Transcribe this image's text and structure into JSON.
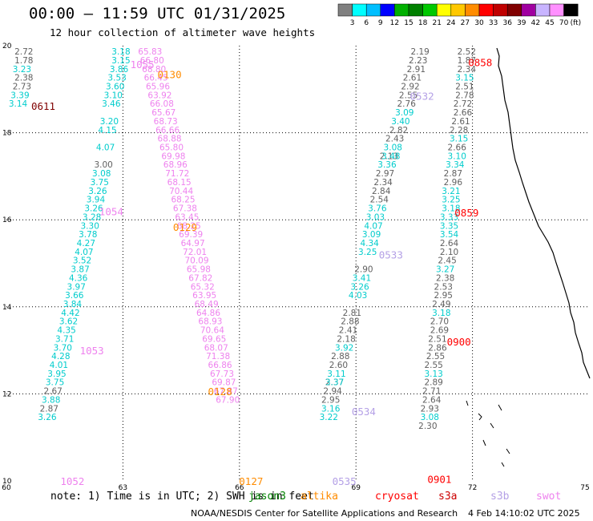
{
  "title": "00:00 – 11:59 UTC 01/31/2025",
  "subtitle": "12 hour collection of altimeter wave heights",
  "note": "note: 1) Time is in UTC; 2) SWH is in feet",
  "credit": "NOAA/NESDIS Center for Satellite Applications and Research",
  "stamp": "4 Feb 14:10:02 UTC 2025",
  "satellite_legend": [
    {
      "name": "jason3",
      "color": "#008000"
    },
    {
      "name": "altika",
      "color": "#ff8c00"
    },
    {
      "name": "cryosat",
      "color": "#ff0000"
    },
    {
      "name": "s3a",
      "color": "#cc0000"
    },
    {
      "name": "s3b",
      "color": "#b4a0e6"
    },
    {
      "name": "swot",
      "color": "#ee82ee"
    }
  ],
  "color_scale": {
    "unit": "(ft)",
    "ticks": [
      "3",
      "6",
      "9",
      "12",
      "15",
      "18",
      "21",
      "24",
      "27",
      "30",
      "33",
      "36",
      "39",
      "42",
      "45",
      "70"
    ],
    "colors": [
      "#808080",
      "#00ffff",
      "#00bfff",
      "#0000ff",
      "#00b000",
      "#008000",
      "#00c800",
      "#ffff00",
      "#ffc800",
      "#ff8c00",
      "#ff0000",
      "#c00000",
      "#800000",
      "#a000a0",
      "#c8b4ff",
      "#ff90ff",
      "#000000"
    ]
  },
  "chart_data": {
    "type": "scatter",
    "x_ticks": [
      "60",
      "63",
      "66",
      "69",
      "72",
      "75"
    ],
    "y_ticks": [
      "10",
      "12",
      "14",
      "16",
      "18",
      "20"
    ],
    "xlim": [
      60,
      75
    ],
    "ylim": [
      10,
      20
    ],
    "grid": true,
    "track_labels": [
      {
        "text": "0611",
        "lon": 60.95,
        "lat": 18.62,
        "color": "#800000"
      },
      {
        "text": "1055",
        "lon": 63.5,
        "lat": 19.58,
        "color": "#ee82ee"
      },
      {
        "text": "0130",
        "lon": 64.2,
        "lat": 19.35,
        "color": "#ff8c00"
      },
      {
        "text": "1054",
        "lon": 62.7,
        "lat": 16.2,
        "color": "#ee82ee"
      },
      {
        "text": "0129",
        "lon": 64.6,
        "lat": 15.84,
        "color": "#ff8c00"
      },
      {
        "text": "1053",
        "lon": 62.2,
        "lat": 13.0,
        "color": "#ee82ee"
      },
      {
        "text": "0128",
        "lon": 65.5,
        "lat": 12.06,
        "color": "#ff8c00"
      },
      {
        "text": "1052",
        "lon": 61.7,
        "lat": 10.0,
        "color": "#ee82ee"
      },
      {
        "text": "0127",
        "lon": 66.3,
        "lat": 10.0,
        "color": "#ff8c00"
      },
      {
        "text": "0532",
        "lon": 70.7,
        "lat": 18.85,
        "color": "#b4a0e6"
      },
      {
        "text": "0533",
        "lon": 69.9,
        "lat": 15.2,
        "color": "#b4a0e6"
      },
      {
        "text": "0534",
        "lon": 69.2,
        "lat": 11.6,
        "color": "#b4a0e6"
      },
      {
        "text": "0535",
        "lon": 68.7,
        "lat": 10.0,
        "color": "#b4a0e6"
      },
      {
        "text": "0858",
        "lon": 72.2,
        "lat": 19.62,
        "color": "#ff0000"
      },
      {
        "text": "0859",
        "lon": 71.85,
        "lat": 16.17,
        "color": "#ff0000"
      },
      {
        "text": "0900",
        "lon": 71.65,
        "lat": 13.2,
        "color": "#ff0000"
      },
      {
        "text": "0901",
        "lon": 71.15,
        "lat": 10.05,
        "color": "#ff0000"
      }
    ],
    "series": [
      {
        "color": "#606060",
        "points": [
          [
            60.45,
            19.87,
            "2.72"
          ],
          [
            60.45,
            19.67,
            "1.78"
          ],
          [
            60.45,
            19.27,
            "2.38"
          ],
          [
            60.4,
            19.07,
            "2.73"
          ]
        ]
      },
      {
        "color": "#00cccc",
        "points": [
          [
            60.4,
            19.47,
            "3.23"
          ],
          [
            60.35,
            18.87,
            "3.39"
          ],
          [
            60.3,
            18.67,
            "3.14"
          ]
        ]
      },
      {
        "color": "#00cccc",
        "points": [
          [
            62.95,
            19.87,
            "3.18"
          ],
          [
            62.95,
            19.67,
            "3.15"
          ],
          [
            62.9,
            19.47,
            "3.86"
          ],
          [
            62.85,
            19.27,
            "3.53"
          ],
          [
            62.8,
            19.07,
            "3.60"
          ],
          [
            62.75,
            18.87,
            "3.10"
          ],
          [
            62.7,
            18.67,
            "3.46"
          ],
          [
            62.65,
            18.27,
            "3.20"
          ],
          [
            62.6,
            18.07,
            "4.15"
          ],
          [
            62.55,
            17.67,
            "4.07"
          ],
          [
            62.45,
            17.07,
            "3.08"
          ],
          [
            62.4,
            16.87,
            "3.75"
          ],
          [
            62.35,
            16.67,
            "3.26"
          ],
          [
            62.3,
            16.47,
            "3.94"
          ],
          [
            62.25,
            16.27,
            "3.26"
          ],
          [
            62.2,
            16.07,
            "3.28"
          ],
          [
            62.15,
            15.87,
            "3.30"
          ],
          [
            62.1,
            15.67,
            "3.78"
          ],
          [
            62.05,
            15.47,
            "4.27"
          ],
          [
            62.0,
            15.27,
            "4.07"
          ],
          [
            61.95,
            15.07,
            "3.52"
          ],
          [
            61.9,
            14.87,
            "3.87"
          ],
          [
            61.85,
            14.67,
            "4.36"
          ],
          [
            61.8,
            14.47,
            "3.97"
          ],
          [
            61.75,
            14.27,
            "3.66"
          ],
          [
            61.7,
            14.07,
            "3.84"
          ],
          [
            61.65,
            13.87,
            "4.42"
          ],
          [
            61.6,
            13.67,
            "3.62"
          ],
          [
            61.55,
            13.47,
            "4.35"
          ],
          [
            61.5,
            13.27,
            "3.71"
          ],
          [
            61.45,
            13.07,
            "3.70"
          ],
          [
            61.4,
            12.87,
            "4.28"
          ],
          [
            61.35,
            12.67,
            "4.01"
          ],
          [
            61.3,
            12.47,
            "3.95"
          ],
          [
            61.25,
            12.27,
            "3.75"
          ],
          [
            61.15,
            11.87,
            "3.88"
          ],
          [
            61.05,
            11.47,
            "3.26"
          ]
        ]
      },
      {
        "color": "#606060",
        "points": [
          [
            62.5,
            17.27,
            "3.00"
          ],
          [
            61.2,
            12.07,
            "2.67"
          ],
          [
            61.1,
            11.67,
            "2.87"
          ]
        ]
      },
      {
        "color": "#ee82ee",
        "points": [
          [
            63.7,
            19.87,
            "65.83"
          ],
          [
            63.75,
            19.67,
            "66.80"
          ],
          [
            63.8,
            19.47,
            "68.80"
          ],
          [
            63.85,
            19.27,
            "66.45"
          ],
          [
            63.9,
            19.07,
            "65.96"
          ],
          [
            63.95,
            18.87,
            "63.92"
          ],
          [
            64.0,
            18.67,
            "66.08"
          ],
          [
            64.05,
            18.47,
            "65.67"
          ],
          [
            64.1,
            18.27,
            "68.73"
          ],
          [
            64.15,
            18.07,
            "66.66"
          ],
          [
            64.2,
            17.87,
            "68.88"
          ],
          [
            64.25,
            17.67,
            "65.80"
          ],
          [
            64.3,
            17.47,
            "69.98"
          ],
          [
            64.35,
            17.27,
            "68.96"
          ],
          [
            64.4,
            17.07,
            "71.72"
          ],
          [
            64.45,
            16.87,
            "68.15"
          ],
          [
            64.5,
            16.67,
            "70.44"
          ],
          [
            64.55,
            16.47,
            "68.25"
          ],
          [
            64.6,
            16.27,
            "67.38"
          ],
          [
            64.65,
            16.07,
            "63.45"
          ],
          [
            64.7,
            15.87,
            "68.25"
          ],
          [
            64.75,
            15.67,
            "69.39"
          ],
          [
            64.8,
            15.47,
            "64.97"
          ],
          [
            64.85,
            15.27,
            "72.01"
          ],
          [
            64.9,
            15.07,
            "70.09"
          ],
          [
            64.95,
            14.87,
            "65.98"
          ],
          [
            65.0,
            14.67,
            "67.82"
          ],
          [
            65.05,
            14.47,
            "65.32"
          ],
          [
            65.1,
            14.27,
            "63.95"
          ],
          [
            65.15,
            14.07,
            "68.49"
          ],
          [
            65.2,
            13.87,
            "64.86"
          ],
          [
            65.25,
            13.67,
            "68.93"
          ],
          [
            65.3,
            13.47,
            "70.64"
          ],
          [
            65.35,
            13.27,
            "69.65"
          ],
          [
            65.4,
            13.07,
            "68.07"
          ],
          [
            65.45,
            12.87,
            "71.38"
          ],
          [
            65.5,
            12.67,
            "66.86"
          ],
          [
            65.55,
            12.47,
            "67.73"
          ],
          [
            65.6,
            12.27,
            "69.87"
          ],
          [
            65.65,
            12.07,
            "67.87"
          ],
          [
            65.7,
            11.87,
            "67.90"
          ]
        ]
      },
      {
        "color": "#606060",
        "points": [
          [
            70.65,
            19.87,
            "2.19"
          ],
          [
            70.6,
            19.67,
            "2.23"
          ],
          [
            70.55,
            19.47,
            "2.91"
          ],
          [
            70.45,
            19.27,
            "2.61"
          ],
          [
            70.4,
            19.07,
            "2.92"
          ],
          [
            70.35,
            18.87,
            "2.55"
          ],
          [
            70.3,
            18.67,
            "2.76"
          ],
          [
            70.1,
            18.07,
            "2.82"
          ],
          [
            70.0,
            17.87,
            "2.43"
          ],
          [
            69.85,
            17.47,
            "2.13"
          ],
          [
            69.75,
            17.07,
            "2.97"
          ],
          [
            69.7,
            16.87,
            "2.34"
          ],
          [
            69.65,
            16.67,
            "2.84"
          ],
          [
            69.6,
            16.47,
            "2.54"
          ],
          [
            69.2,
            14.87,
            "2.90"
          ],
          [
            68.9,
            13.87,
            "2.81"
          ],
          [
            68.85,
            13.67,
            "2.88"
          ],
          [
            68.8,
            13.47,
            "2.41"
          ],
          [
            68.75,
            13.27,
            "2.18"
          ],
          [
            68.6,
            12.87,
            "2.88"
          ],
          [
            68.55,
            12.67,
            "2.60"
          ],
          [
            68.45,
            12.27,
            "2.37"
          ],
          [
            68.4,
            12.07,
            "2.94"
          ],
          [
            68.35,
            11.87,
            "2.95"
          ]
        ]
      },
      {
        "color": "#00cccc",
        "points": [
          [
            70.25,
            18.47,
            "3.09"
          ],
          [
            70.15,
            18.27,
            "3.40"
          ],
          [
            69.95,
            17.67,
            "3.08"
          ],
          [
            69.9,
            17.47,
            "3.48"
          ],
          [
            69.8,
            17.27,
            "3.36"
          ],
          [
            69.55,
            16.27,
            "3.76"
          ],
          [
            69.5,
            16.07,
            "3.03"
          ],
          [
            69.45,
            15.87,
            "4.07"
          ],
          [
            69.4,
            15.67,
            "3.09"
          ],
          [
            69.35,
            15.47,
            "4.34"
          ],
          [
            69.3,
            15.27,
            "3.25"
          ],
          [
            69.15,
            14.67,
            "3.41"
          ],
          [
            69.1,
            14.47,
            "3.26"
          ],
          [
            69.05,
            14.27,
            "4.03"
          ],
          [
            68.7,
            13.07,
            "3.92"
          ],
          [
            68.5,
            12.47,
            "3.11"
          ],
          [
            68.45,
            12.27,
            "3.37"
          ],
          [
            68.35,
            11.67,
            "3.16"
          ],
          [
            68.3,
            11.47,
            "3.22"
          ]
        ]
      },
      {
        "color": "#606060",
        "points": [
          [
            71.85,
            19.87,
            "2.52"
          ],
          [
            71.85,
            19.67,
            "1.87"
          ],
          [
            71.85,
            19.47,
            "2.34"
          ],
          [
            71.8,
            19.07,
            "2.51"
          ],
          [
            71.8,
            18.87,
            "2.78"
          ],
          [
            71.75,
            18.67,
            "2.72"
          ],
          [
            71.75,
            18.47,
            "2.66"
          ],
          [
            71.7,
            18.27,
            "2.61"
          ],
          [
            71.65,
            18.07,
            "2.28"
          ],
          [
            71.6,
            17.67,
            "2.66"
          ],
          [
            71.5,
            17.07,
            "2.87"
          ],
          [
            71.5,
            16.87,
            "2.96"
          ],
          [
            71.4,
            15.47,
            "2.64"
          ],
          [
            71.4,
            15.27,
            "2.10"
          ],
          [
            71.35,
            15.07,
            "2.45"
          ],
          [
            71.3,
            14.67,
            "2.38"
          ],
          [
            71.25,
            14.47,
            "2.53"
          ],
          [
            71.25,
            14.27,
            "2.95"
          ],
          [
            71.2,
            14.07,
            "2.49"
          ],
          [
            71.15,
            13.67,
            "2.70"
          ],
          [
            71.15,
            13.47,
            "2.69"
          ],
          [
            71.1,
            13.27,
            "2.51"
          ],
          [
            71.1,
            13.07,
            "2.86"
          ],
          [
            71.05,
            12.87,
            "2.55"
          ],
          [
            71.0,
            12.67,
            "2.55"
          ],
          [
            71.0,
            12.27,
            "2.89"
          ],
          [
            70.95,
            12.07,
            "2.71"
          ],
          [
            70.95,
            11.87,
            "2.64"
          ],
          [
            70.9,
            11.67,
            "2.93"
          ],
          [
            70.85,
            11.27,
            "2.30"
          ]
        ]
      },
      {
        "color": "#00cccc",
        "points": [
          [
            71.8,
            19.27,
            "3.15"
          ],
          [
            71.65,
            17.87,
            "3.15"
          ],
          [
            71.6,
            17.47,
            "3.10"
          ],
          [
            71.55,
            17.27,
            "3.34"
          ],
          [
            71.45,
            16.67,
            "3.21"
          ],
          [
            71.45,
            16.47,
            "3.25"
          ],
          [
            71.45,
            16.27,
            "3.18"
          ],
          [
            71.4,
            16.07,
            "3.33"
          ],
          [
            71.4,
            15.87,
            "3.35"
          ],
          [
            71.4,
            15.67,
            "3.54"
          ],
          [
            71.3,
            14.87,
            "3.27"
          ],
          [
            71.2,
            13.87,
            "3.18"
          ],
          [
            71.0,
            12.47,
            "3.13"
          ],
          [
            70.9,
            11.47,
            "3.08"
          ]
        ]
      }
    ]
  }
}
